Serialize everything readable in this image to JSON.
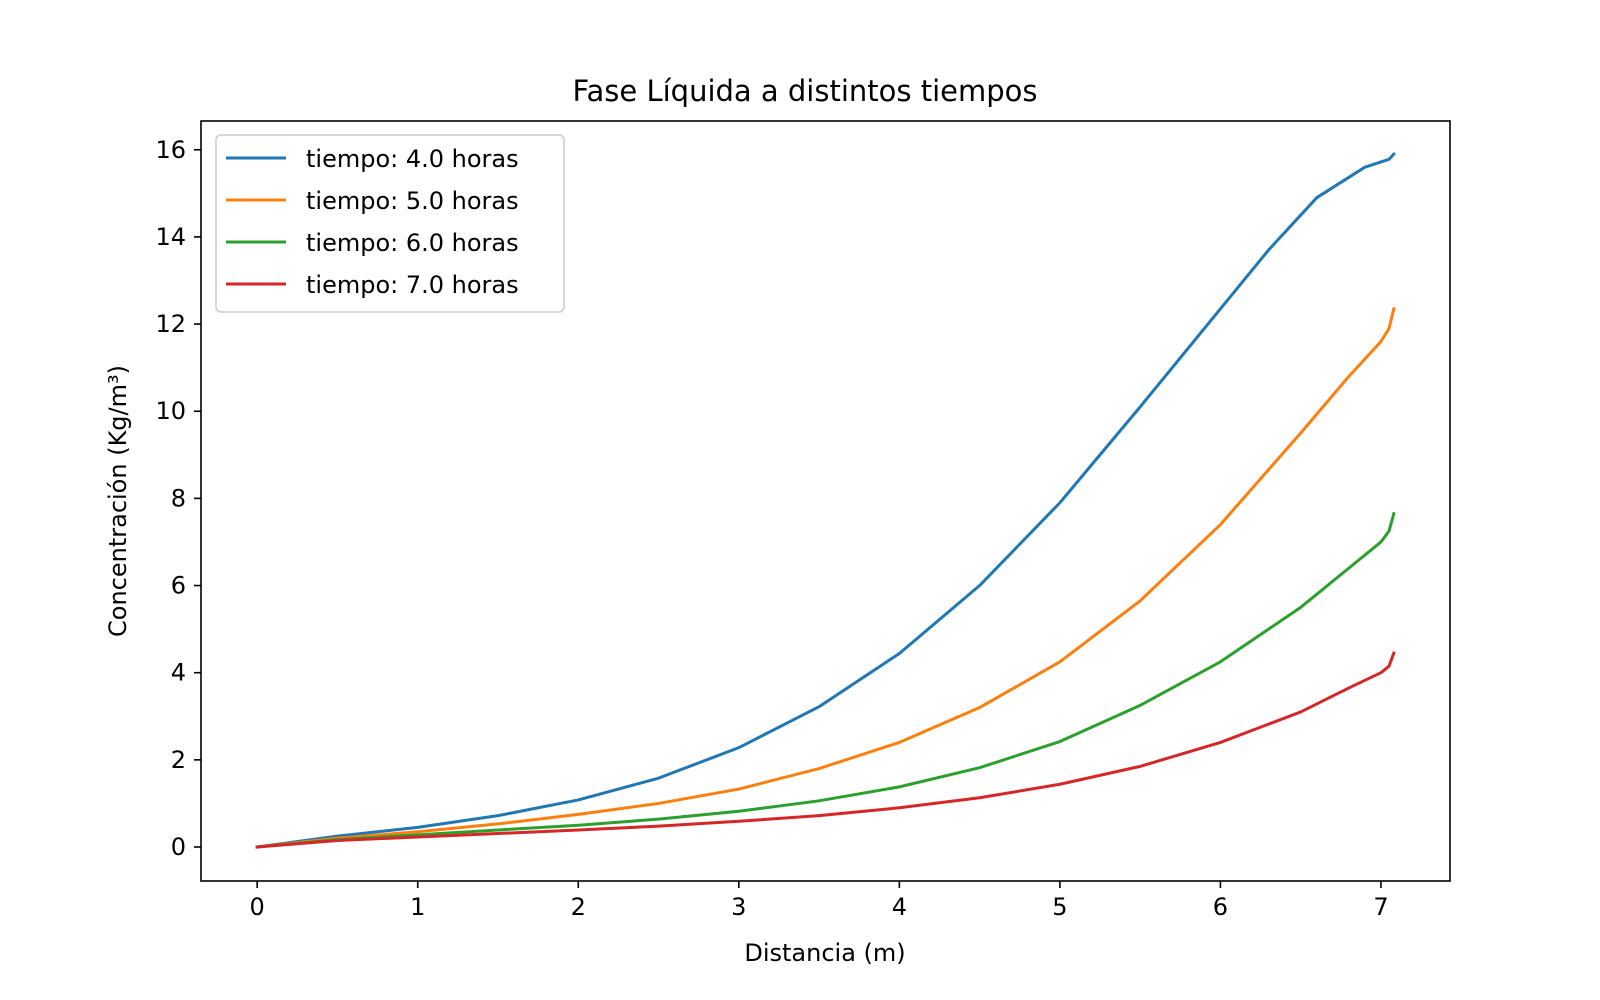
{
  "chart_data": {
    "type": "line",
    "title": "Fase Líquida a distintos tiempos",
    "xlabel": "Distancia (m)",
    "ylabel": "Concentración (Kg/m³)",
    "xlim": [
      -0.35,
      7.43
    ],
    "ylim": [
      -0.78,
      16.66
    ],
    "xticks": [
      0,
      1,
      2,
      3,
      4,
      5,
      6,
      7
    ],
    "yticks": [
      0,
      2,
      4,
      6,
      8,
      10,
      12,
      14,
      16
    ],
    "grid": false,
    "legend": "top-left",
    "series": [
      {
        "name": "tiempo: 4.0 horas",
        "color": "#1f77b4",
        "x": [
          0,
          0.5,
          1,
          1.5,
          2,
          2.5,
          3,
          3.5,
          4,
          4.5,
          5,
          5.5,
          6,
          6.3,
          6.6,
          6.9,
          7.05,
          7.08
        ],
        "y": [
          0,
          0.25,
          0.45,
          0.72,
          1.08,
          1.58,
          2.28,
          3.22,
          4.44,
          6.0,
          7.9,
          10.1,
          12.35,
          13.7,
          14.9,
          15.6,
          15.78,
          15.9
        ]
      },
      {
        "name": "tiempo: 5.0 horas",
        "color": "#ff7f0e",
        "x": [
          0,
          0.5,
          1,
          1.5,
          2,
          2.5,
          3,
          3.5,
          4,
          4.5,
          5,
          5.5,
          6,
          6.5,
          6.8,
          7.0,
          7.05,
          7.08
        ],
        "y": [
          0,
          0.2,
          0.35,
          0.53,
          0.75,
          1.0,
          1.33,
          1.8,
          2.4,
          3.2,
          4.25,
          5.65,
          7.4,
          9.5,
          10.8,
          11.6,
          11.9,
          12.35
        ]
      },
      {
        "name": "tiempo: 6.0 horas",
        "color": "#2ca02c",
        "x": [
          0,
          0.5,
          1,
          1.5,
          2,
          2.5,
          3,
          3.5,
          4,
          4.5,
          5,
          5.5,
          6,
          6.5,
          6.8,
          7.0,
          7.05,
          7.08
        ],
        "y": [
          0,
          0.17,
          0.28,
          0.39,
          0.5,
          0.64,
          0.82,
          1.06,
          1.38,
          1.82,
          2.42,
          3.25,
          4.25,
          5.5,
          6.4,
          7.0,
          7.25,
          7.65
        ]
      },
      {
        "name": "tiempo: 7.0 horas",
        "color": "#d62728",
        "x": [
          0,
          0.5,
          1,
          1.5,
          2,
          2.5,
          3,
          3.5,
          4,
          4.5,
          5,
          5.5,
          6,
          6.5,
          6.8,
          7.0,
          7.05,
          7.08
        ],
        "y": [
          0,
          0.15,
          0.23,
          0.31,
          0.39,
          0.48,
          0.59,
          0.72,
          0.9,
          1.13,
          1.44,
          1.85,
          2.4,
          3.1,
          3.65,
          4.0,
          4.15,
          4.45
        ]
      }
    ]
  }
}
